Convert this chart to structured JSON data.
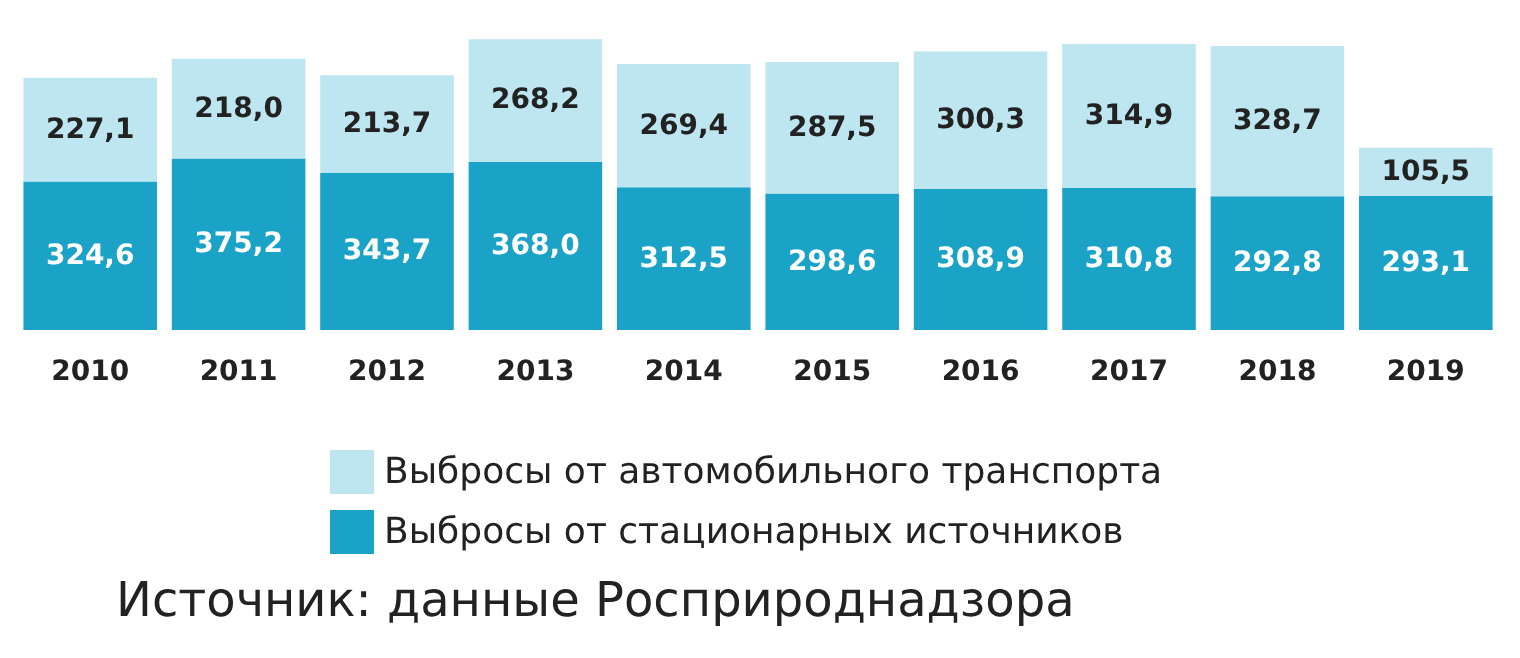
{
  "chart_data": {
    "type": "bar",
    "stacked": true,
    "legend": "bottom",
    "categories": [
      "2010",
      "2011",
      "2012",
      "2013",
      "2014",
      "2015",
      "2016",
      "2017",
      "2018",
      "2019"
    ],
    "series": [
      {
        "name": "Выбросы от стационарных источников",
        "color": "#1aa3c6",
        "values": [
          324.6,
          375.2,
          343.7,
          368.0,
          312.5,
          298.6,
          308.9,
          310.8,
          292.8,
          293.1
        ],
        "value_labels": [
          "324,6",
          "375,2",
          "343,7",
          "368,0",
          "312,5",
          "298,6",
          "308,9",
          "310,8",
          "292,8",
          "293,1"
        ]
      },
      {
        "name": "Выбросы от автомобильного транспорта",
        "color": "#bde6f0",
        "values": [
          227.1,
          218.0,
          213.7,
          268.2,
          269.4,
          287.5,
          300.3,
          314.9,
          328.7,
          105.5
        ],
        "value_labels": [
          "227,1",
          "218,0",
          "213,7",
          "268,2",
          "269,4",
          "287,5",
          "300,3",
          "314,9",
          "328,7",
          "105,5"
        ]
      }
    ],
    "annotations": [
      "Источник: данные Росприроднадзора"
    ]
  }
}
